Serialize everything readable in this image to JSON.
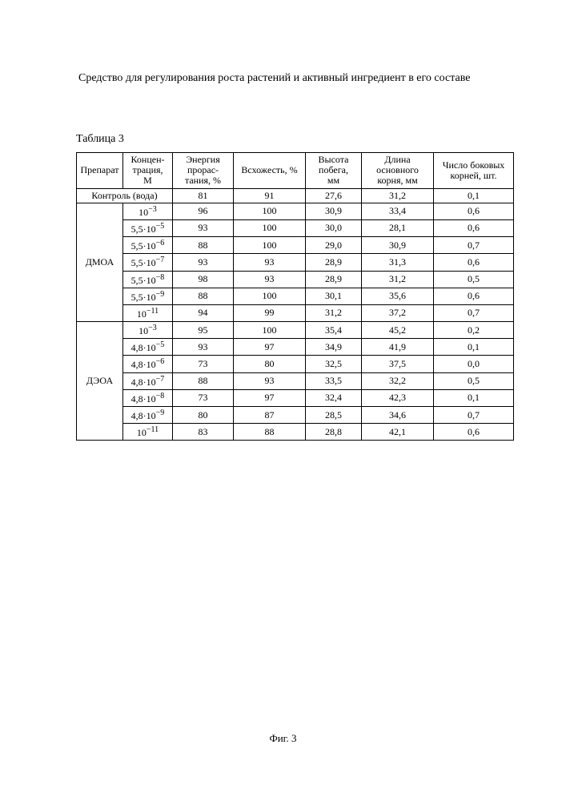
{
  "title": "Средство для регулирования роста растений и активный ингредиент в его составе",
  "table_caption": "Таблица 3",
  "headers": {
    "preparat": "Препарат",
    "concentration": "Концен-\nтрация,\nМ",
    "energy": "Энергия\nпрорас-\nтания, %",
    "germination": "Всхожесть, %",
    "height": "Высота\nпобега,\nмм",
    "root_len": "Длина\nосновного\nкорня, мм",
    "root_num": "Число боковых\nкорней, шт."
  },
  "control": {
    "label": "Контроль (вода)",
    "energy": "81",
    "germination": "91",
    "height": "27,6",
    "root_len": "31,2",
    "root_num": "0,1"
  },
  "groups": [
    {
      "name": "ДМОА",
      "rows": [
        {
          "conc_html": "10<sup>−3</sup>",
          "energy": "96",
          "germination": "100",
          "height": "30,9",
          "root_len": "33,4",
          "root_num": "0,6"
        },
        {
          "conc_html": "5,5·10<sup>−5</sup>",
          "energy": "93",
          "germination": "100",
          "height": "30,0",
          "root_len": "28,1",
          "root_num": "0,6"
        },
        {
          "conc_html": "5,5·10<sup>−6</sup>",
          "energy": "88",
          "germination": "100",
          "height": "29,0",
          "root_len": "30,9",
          "root_num": "0,7"
        },
        {
          "conc_html": "5,5·10<sup>−7</sup>",
          "energy": "93",
          "germination": "93",
          "height": "28,9",
          "root_len": "31,3",
          "root_num": "0,6"
        },
        {
          "conc_html": "5,5·10<sup>−8</sup>",
          "energy": "98",
          "germination": "93",
          "height": "28,9",
          "root_len": "31,2",
          "root_num": "0,5"
        },
        {
          "conc_html": "5,5·10<sup>−9</sup>",
          "energy": "88",
          "germination": "100",
          "height": "30,1",
          "root_len": "35,6",
          "root_num": "0,6"
        },
        {
          "conc_html": "10<sup>−11</sup>",
          "energy": "94",
          "germination": "99",
          "height": "31,2",
          "root_len": "37,2",
          "root_num": "0,7"
        }
      ]
    },
    {
      "name": "ДЭОА",
      "rows": [
        {
          "conc_html": "10<sup>−3</sup>",
          "energy": "95",
          "germination": "100",
          "height": "35,4",
          "root_len": "45,2",
          "root_num": "0,2"
        },
        {
          "conc_html": "4,8·10<sup>−5</sup>",
          "energy": "93",
          "germination": "97",
          "height": "34,9",
          "root_len": "41,9",
          "root_num": "0,1"
        },
        {
          "conc_html": "4,8·10<sup>−6</sup>",
          "energy": "73",
          "germination": "80",
          "height": "32,5",
          "root_len": "37,5",
          "root_num": "0,0"
        },
        {
          "conc_html": "4,8·10<sup>−7</sup>",
          "energy": "88",
          "germination": "93",
          "height": "33,5",
          "root_len": "32,2",
          "root_num": "0,5"
        },
        {
          "conc_html": "4,8·10<sup>−8</sup>",
          "energy": "73",
          "germination": "97",
          "height": "32,4",
          "root_len": "42,3",
          "root_num": "0,1"
        },
        {
          "conc_html": "4,8·10<sup>−9</sup>",
          "energy": "80",
          "germination": "87",
          "height": "28,5",
          "root_len": "34,6",
          "root_num": "0,7"
        },
        {
          "conc_html": "10<sup>−11</sup>",
          "energy": "83",
          "germination": "88",
          "height": "28,8",
          "root_len": "42,1",
          "root_num": "0,6"
        }
      ]
    }
  ],
  "figure_caption": "Фиг. 3"
}
